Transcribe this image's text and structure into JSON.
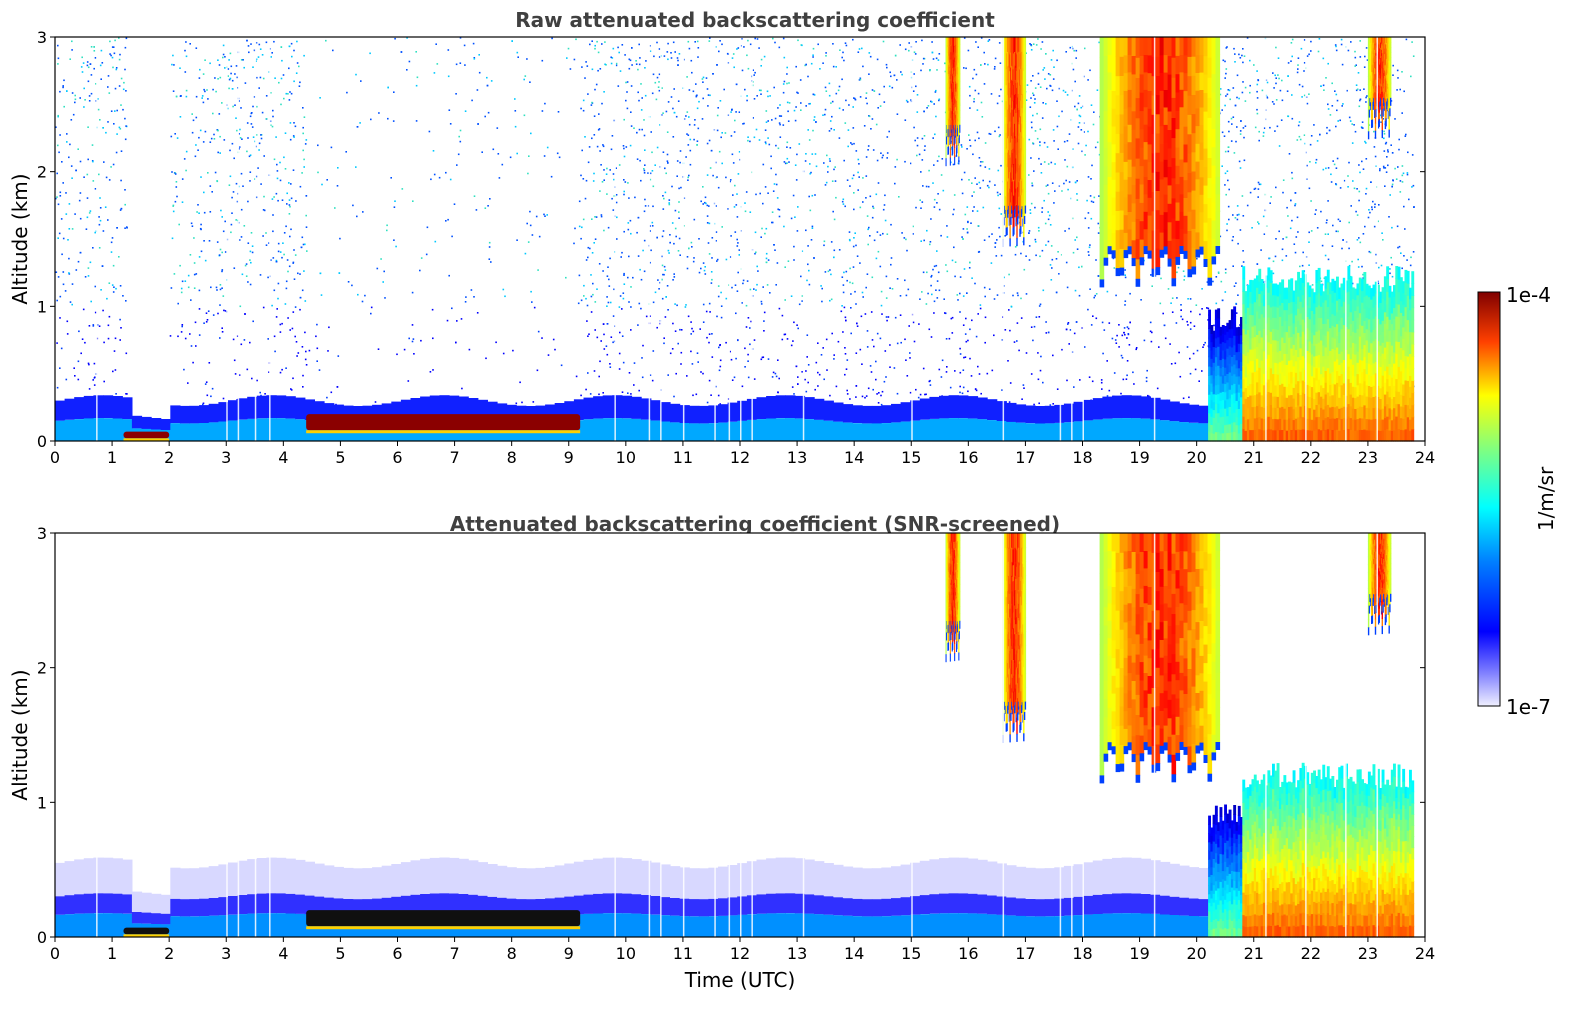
{
  "chart_data": [
    {
      "type": "heatmap",
      "title": "Raw attenuated backscattering coefficient",
      "xlabel": "",
      "ylabel": "Altitude (km)",
      "xlim": [
        0,
        24
      ],
      "ylim": [
        0,
        3
      ],
      "xticks": [
        "0",
        "1",
        "2",
        "3",
        "4",
        "5",
        "6",
        "7",
        "8",
        "9",
        "10",
        "11",
        "12",
        "13",
        "14",
        "15",
        "16",
        "17",
        "18",
        "19",
        "20",
        "21",
        "22",
        "23",
        "24"
      ],
      "yticks": [
        "0",
        "1",
        "2",
        "3"
      ],
      "features": [
        {
          "kind": "aerosol_layer",
          "t_start": 0,
          "t_end": 20.2,
          "z_top": 0.3
        },
        {
          "kind": "strong_layer",
          "t_start": 1.2,
          "t_end": 2.0,
          "z_bottom": 0.02,
          "z_top": 0.07
        },
        {
          "kind": "strong_layer",
          "t_start": 4.4,
          "t_end": 9.2,
          "z_bottom": 0.08,
          "z_top": 0.2
        },
        {
          "kind": "cloud",
          "t_start": 15.6,
          "t_end": 15.85,
          "z_bottom": 2.1,
          "z_top": 3.0
        },
        {
          "kind": "cloud",
          "t_start": 16.6,
          "t_end": 17.0,
          "z_bottom": 1.5,
          "z_top": 3.0
        },
        {
          "kind": "cloud",
          "t_start": 18.3,
          "t_end": 20.4,
          "z_bottom": 1.2,
          "z_top": 3.0
        },
        {
          "kind": "precipitation",
          "t_start": 20.2,
          "t_end": 23.8,
          "z_bottom": 0.0,
          "z_top": 1.3
        },
        {
          "kind": "cloud",
          "t_start": 23.0,
          "t_end": 23.4,
          "z_bottom": 2.3,
          "z_top": 3.0
        }
      ]
    },
    {
      "type": "heatmap",
      "title": "Attenuated backscattering coefficient (SNR-screened)",
      "xlabel": "Time (UTC)",
      "ylabel": "Altitude (km)",
      "xlim": [
        0,
        24
      ],
      "ylim": [
        0,
        3
      ],
      "xticks": [
        "0",
        "1",
        "2",
        "3",
        "4",
        "5",
        "6",
        "7",
        "8",
        "9",
        "10",
        "11",
        "12",
        "13",
        "14",
        "15",
        "16",
        "17",
        "18",
        "19",
        "20",
        "21",
        "22",
        "23",
        "24"
      ],
      "yticks": [
        "0",
        "1",
        "2",
        "3"
      ],
      "features": [
        {
          "kind": "aerosol_layer",
          "t_start": 0,
          "t_end": 20.2,
          "z_top": 0.55
        },
        {
          "kind": "strong_layer",
          "t_start": 1.2,
          "t_end": 2.0,
          "z_bottom": 0.02,
          "z_top": 0.07
        },
        {
          "kind": "strong_layer",
          "t_start": 4.4,
          "t_end": 9.2,
          "z_bottom": 0.08,
          "z_top": 0.2
        },
        {
          "kind": "cloud",
          "t_start": 15.6,
          "t_end": 15.85,
          "z_bottom": 2.1,
          "z_top": 3.0
        },
        {
          "kind": "cloud",
          "t_start": 16.6,
          "t_end": 17.0,
          "z_bottom": 1.5,
          "z_top": 3.0
        },
        {
          "kind": "cloud",
          "t_start": 18.3,
          "t_end": 20.4,
          "z_bottom": 1.2,
          "z_top": 3.0
        },
        {
          "kind": "precipitation",
          "t_start": 20.2,
          "t_end": 23.8,
          "z_bottom": 0.0,
          "z_top": 1.3
        },
        {
          "kind": "cloud",
          "t_start": 23.0,
          "t_end": 23.4,
          "z_bottom": 2.3,
          "z_top": 3.0
        }
      ]
    }
  ],
  "colorbar": {
    "label": "1/m/sr",
    "max_label": "1e-4",
    "min_label": "1e-7",
    "scale": "log",
    "colormap": "jet",
    "range": [
      1e-07,
      0.0001
    ]
  },
  "colors": {
    "background": "#ffffff",
    "title": "#404040",
    "jet_dark_red": "#800000",
    "jet_blue": "#0000ff",
    "jet_cyan": "#00ffff",
    "jet_yellow": "#ffff00"
  }
}
